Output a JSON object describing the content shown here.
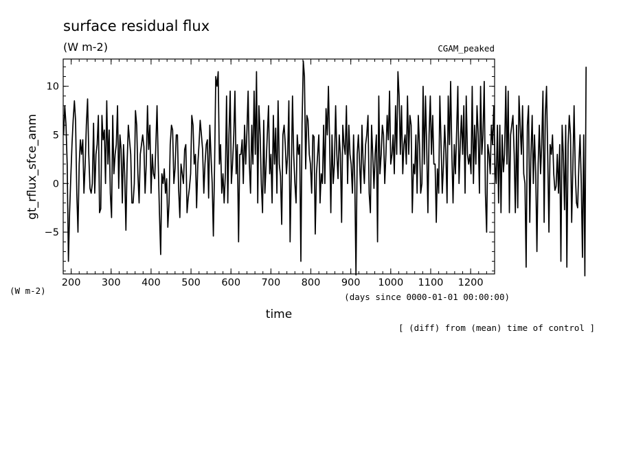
{
  "chart_data": {
    "type": "line",
    "title": "surface residual flux",
    "units": "(W m-2)",
    "experiment": "CGAM_peaked",
    "ylabel": "gt_rflux_sfce_anm",
    "ylabel_units": "(W m-2)",
    "xlabel": "time",
    "xlabel_units": "(days since 0000-01-01 00:00:00)",
    "footnote": "[ (diff) from (mean) time of control ]",
    "xlim": [
      180,
      1260
    ],
    "ylim": [
      -9.3,
      12.8
    ],
    "x_ticks": [
      200,
      300,
      400,
      500,
      600,
      700,
      800,
      900,
      1000,
      1100,
      1200
    ],
    "y_ticks": [
      -5,
      0,
      5,
      10
    ],
    "y_tick_labels": [
      "−5",
      "0",
      "5",
      "10"
    ],
    "series": [
      {
        "x_start": 181,
        "x_step": 3,
        "values": [
          5,
          8,
          6,
          2,
          -8,
          -3,
          0.5,
          4,
          6.5,
          8.5,
          6.5,
          -1,
          -5,
          2,
          4.5,
          3,
          4.5,
          -1,
          2,
          6,
          8.7,
          3,
          -0.5,
          -1,
          0,
          6.2,
          -1,
          3,
          4,
          7,
          -3,
          -2.6,
          7,
          4.5,
          5.5,
          0,
          8.5,
          2,
          5.5,
          -1,
          -3.5,
          7,
          1,
          3,
          4,
          8,
          -0.5,
          5,
          3.5,
          -2,
          4,
          1,
          -4.8,
          2,
          6,
          4.5,
          3,
          -2,
          -2,
          0,
          7.5,
          6,
          1,
          -2,
          3,
          4,
          5,
          3.8,
          -1,
          2,
          8,
          3.5,
          6,
          -1,
          3,
          1,
          0.5,
          4,
          8,
          2,
          -3,
          -7.3,
          1,
          0,
          1.5,
          -1,
          0.5,
          -4.5,
          -2,
          4,
          6,
          5.5,
          0,
          1.5,
          5,
          5,
          -0.5,
          -3.5,
          2,
          1,
          0,
          3.5,
          4,
          -3,
          -1.5,
          -0.5,
          1,
          7,
          6,
          2,
          3,
          -2.5,
          2,
          4,
          6.5,
          5,
          3.5,
          -1,
          2,
          4,
          4.5,
          -1.5,
          6,
          3,
          0,
          -5.4,
          2,
          11,
          10,
          11.5,
          2,
          4,
          -1,
          1,
          -2,
          1,
          9,
          -2,
          5,
          9.5,
          0,
          2,
          5,
          9.5,
          1,
          4,
          -6,
          3,
          3,
          4.5,
          0,
          6,
          2,
          5.5,
          9.5,
          2,
          -1,
          6,
          2,
          9.5,
          3,
          11.5,
          -2,
          8,
          5,
          0,
          -3,
          6.5,
          -1,
          2,
          5,
          8,
          1,
          3,
          -2,
          7,
          2,
          5.7,
          -1,
          8.5,
          2,
          0.8,
          -4.2,
          5,
          6,
          4,
          1,
          3,
          8.5,
          -6,
          1,
          9,
          3,
          0,
          -2,
          5,
          3,
          4,
          -8,
          6,
          12.6,
          11,
          1.5,
          7,
          6.5,
          3,
          2,
          -1,
          5,
          4.8,
          -5.2,
          1,
          3,
          5,
          -2,
          1,
          0,
          6,
          0,
          7.7,
          5,
          10,
          4.5,
          -3,
          5,
          0,
          2,
          8,
          3,
          0.5,
          5,
          3,
          -4,
          6,
          4,
          3,
          8,
          0,
          6,
          3,
          2,
          -1,
          5,
          0,
          -9.4,
          3,
          5,
          2,
          -1,
          6,
          2,
          0,
          4,
          5,
          7,
          -1,
          -3,
          6,
          3,
          -0.5,
          3,
          5,
          -6,
          9,
          1,
          3,
          6,
          5,
          0,
          3,
          7,
          4.5,
          9.5,
          2,
          3,
          5,
          1,
          8,
          3,
          11.5,
          9,
          3,
          8,
          1,
          4,
          5,
          2,
          9,
          3,
          7,
          6,
          -3,
          2,
          1,
          5,
          -1,
          7,
          4,
          -1,
          0,
          10,
          2,
          9,
          4,
          -3,
          5,
          9,
          3,
          7,
          2,
          2,
          -4,
          1.5,
          -1,
          9,
          4,
          -1,
          2,
          6,
          3,
          -2,
          9,
          4,
          10.5,
          3,
          -2,
          4,
          1,
          5.5,
          10,
          0,
          4,
          7,
          3,
          8,
          -1,
          9,
          3,
          2,
          3,
          1,
          10,
          0,
          6,
          2,
          8,
          5,
          -1,
          10,
          3,
          5,
          10.5,
          -1,
          -5,
          4,
          3,
          1,
          6,
          4,
          8,
          2,
          0,
          6,
          -2,
          6,
          -3,
          5,
          1.2,
          3,
          10,
          2,
          9.5,
          -3,
          5,
          6,
          7,
          3,
          -3,
          6,
          -2.5,
          9,
          6,
          3,
          8,
          1,
          0,
          -8.6,
          6,
          8,
          -4,
          3,
          7,
          0,
          5,
          1,
          -7,
          2,
          6,
          1,
          4,
          9.5,
          -4,
          7,
          10,
          3,
          -5,
          4,
          3,
          5,
          1,
          -0.7,
          -0.3,
          3,
          -1,
          4,
          -8,
          6,
          3,
          -2.7,
          6,
          -8.6,
          4,
          7,
          5,
          -4,
          2,
          8,
          1,
          -2,
          -2.5,
          2,
          5,
          0,
          -7.6,
          5,
          -9.5,
          12
        ]
      }
    ]
  }
}
